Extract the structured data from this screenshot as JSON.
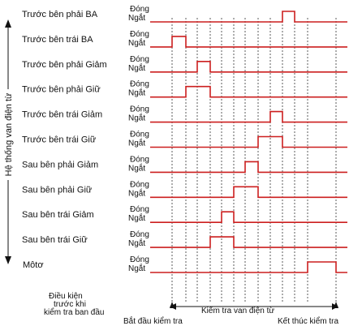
{
  "group_label": "Hệ thống van điện từ",
  "state_on": "Đóng",
  "state_off": "Ngắt",
  "colors": {
    "signal": "#cc1f1f",
    "guide": "#333333",
    "text": "#111111"
  },
  "channels": [
    {
      "label": "Trước bên phải BA",
      "pulses": [
        [
          348,
          363
        ]
      ]
    },
    {
      "label": "Trước bên trái  BA",
      "pulses": [
        [
          212,
          229
        ]
      ]
    },
    {
      "label": "Trước bên phải Giảm",
      "pulses": [
        [
          243,
          259
        ]
      ]
    },
    {
      "label": "Trước bên phải Giữ",
      "pulses": [
        [
          229,
          259
        ]
      ]
    },
    {
      "label": "Trước bên trái  Giảm",
      "pulses": [
        [
          333,
          348
        ]
      ]
    },
    {
      "label": "Trước bên trái  Giữ",
      "pulses": [
        [
          318,
          348
        ]
      ]
    },
    {
      "label": "Sau bên phải  Giảm",
      "pulses": [
        [
          302,
          318
        ]
      ]
    },
    {
      "label": "Sau bên phải  Giữ",
      "pulses": [
        [
          288,
          318
        ]
      ]
    },
    {
      "label": "Sau bên trái  Giảm",
      "pulses": [
        [
          273,
          288
        ]
      ]
    },
    {
      "label": "Sau bên trái  Giữ",
      "pulses": [
        [
          259,
          288
        ]
      ]
    },
    {
      "label": "Môtơ",
      "pulses": [
        [
          379,
          414
        ]
      ]
    }
  ],
  "axis": {
    "left_label_lines": [
      "Điều kiện",
      "trước khi",
      "kiểm tra ban đầu"
    ],
    "start_label": "Bắt đầu kiểm tra",
    "middle_label": "Kiểm tra van điện từ",
    "end_label": "Kết thúc kiểm tra"
  }
}
